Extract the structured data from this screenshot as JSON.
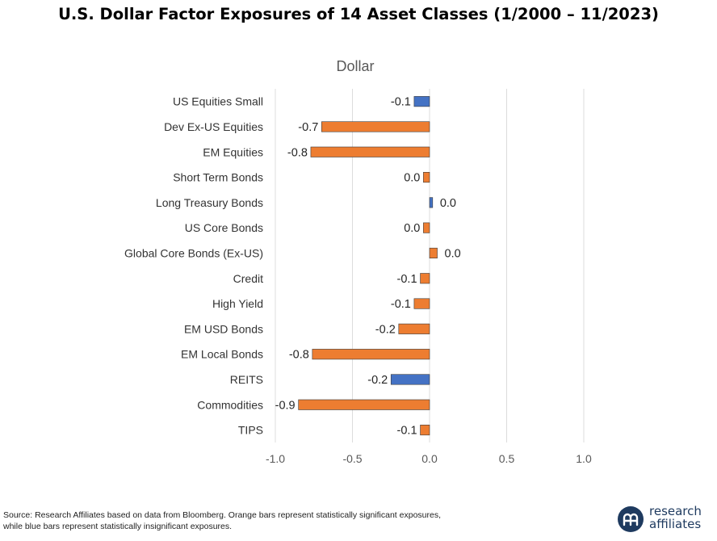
{
  "page": {
    "title": "U.S. Dollar Factor Exposures of 14 Asset Classes (1/2000 – 11/2023)",
    "source_line1": "Source: Research Affiliates based on data from Bloomberg. Orange bars represent statistically significant exposures,",
    "source_line2": "while blue bars represent statistically insignificant exposures.",
    "logo_line1": "research",
    "logo_line2": "affiliates"
  },
  "colors": {
    "significant": "#ED7D31",
    "insignificant": "#4472C4",
    "bar_border": "#3a3a3a",
    "gridline": "#dcdcdc",
    "axis_text": "#595959",
    "logo": "#1e3a5f"
  },
  "chart_data": {
    "type": "bar",
    "orientation": "horizontal",
    "title": "Dollar",
    "xlim": [
      -1.0,
      1.0
    ],
    "xticks": [
      -1.0,
      -0.5,
      0.0,
      0.5,
      1.0
    ],
    "xtick_labels": [
      "-1.0",
      "-0.5",
      "0.0",
      "0.5",
      "1.0"
    ],
    "grid": true,
    "legend": "none",
    "categories": [
      "US Equities Small",
      "Dev Ex-US Equities",
      "EM Equities",
      "Short Term Bonds",
      "Long Treasury Bonds",
      "US Core Bonds",
      "Global Core Bonds (Ex-US)",
      "Credit",
      "High Yield",
      "EM USD Bonds",
      "EM Local Bonds",
      "REITS",
      "Commodities",
      "TIPS"
    ],
    "values": [
      -0.1,
      -0.7,
      -0.77,
      -0.04,
      0.02,
      -0.04,
      0.05,
      -0.06,
      -0.1,
      -0.2,
      -0.76,
      -0.25,
      -0.85,
      -0.06
    ],
    "data_labels": [
      "-0.1",
      "-0.7",
      "-0.8",
      "0.0",
      "0.0",
      "0.0",
      "0.0",
      "-0.1",
      "-0.1",
      "-0.2",
      "-0.8",
      "-0.2",
      "-0.9",
      "-0.1"
    ],
    "significant": [
      false,
      true,
      true,
      true,
      false,
      true,
      true,
      true,
      true,
      true,
      true,
      false,
      true,
      true
    ]
  }
}
